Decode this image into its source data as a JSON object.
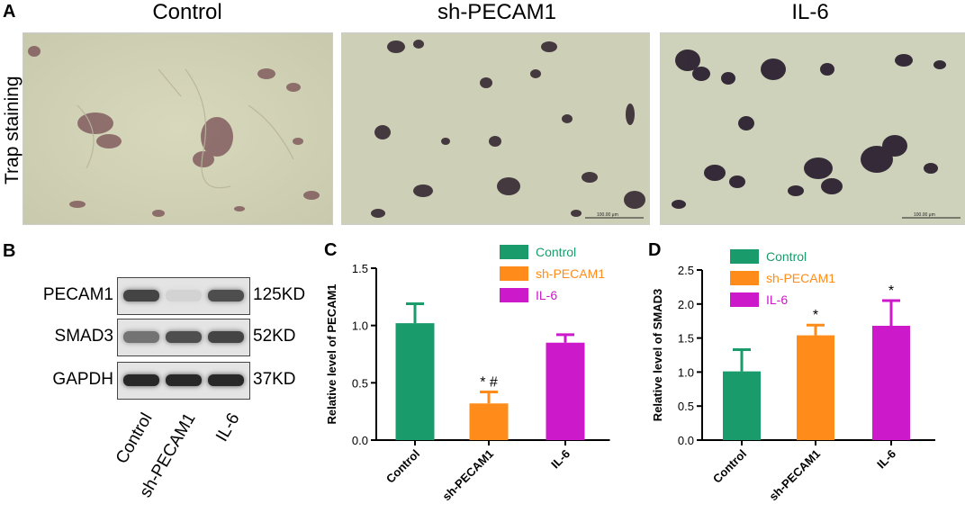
{
  "panel_a": {
    "letter": "A",
    "row_title": "Trap staining",
    "columns": [
      "Control",
      "sh-PECAM1",
      "IL-6"
    ],
    "scalebar_text": "100.00 μm"
  },
  "panel_b": {
    "letter": "B",
    "proteins": [
      {
        "name": "PECAM1",
        "size": "125KD",
        "intensities": [
          0.8,
          0.05,
          0.75
        ]
      },
      {
        "name": "SMAD3",
        "size": "52KD",
        "intensities": [
          0.55,
          0.75,
          0.8
        ]
      },
      {
        "name": "GAPDH",
        "size": "37KD",
        "intensities": [
          0.95,
          0.95,
          0.95
        ]
      }
    ],
    "lanes": [
      "Control",
      "sh-PECAM1",
      "IL-6"
    ]
  },
  "colors": {
    "Control": "#1a9b6c",
    "sh-PECAM1": "#ff8c1a",
    "IL-6": "#cc19c9"
  },
  "chart_data": [
    {
      "panel": "C",
      "type": "bar",
      "categories": [
        "Control",
        "sh-PECAM1",
        "IL-6"
      ],
      "values": [
        1.02,
        0.32,
        0.85
      ],
      "errors": [
        0.17,
        0.1,
        0.07
      ],
      "annotations": [
        "",
        "*#",
        ""
      ],
      "ylabel": "Relative level of PECAM1",
      "ylim": [
        0,
        1.5
      ],
      "yticks": [
        "0.0",
        "0.5",
        "1.0",
        "1.5"
      ],
      "legend": [
        "Control",
        "sh-PECAM1",
        "IL-6"
      ]
    },
    {
      "panel": "D",
      "type": "bar",
      "categories": [
        "Control",
        "sh-PECAM1",
        "IL-6"
      ],
      "values": [
        1.01,
        1.54,
        1.68
      ],
      "errors": [
        0.32,
        0.15,
        0.37
      ],
      "annotations": [
        "",
        "*",
        "*"
      ],
      "ylabel": "Relative level of SMAD3",
      "ylim": [
        0,
        2.5
      ],
      "yticks": [
        "0.0",
        "0.5",
        "1.0",
        "1.5",
        "2.0",
        "2.5"
      ],
      "legend": [
        "Control",
        "sh-PECAM1",
        "IL-6"
      ]
    }
  ]
}
